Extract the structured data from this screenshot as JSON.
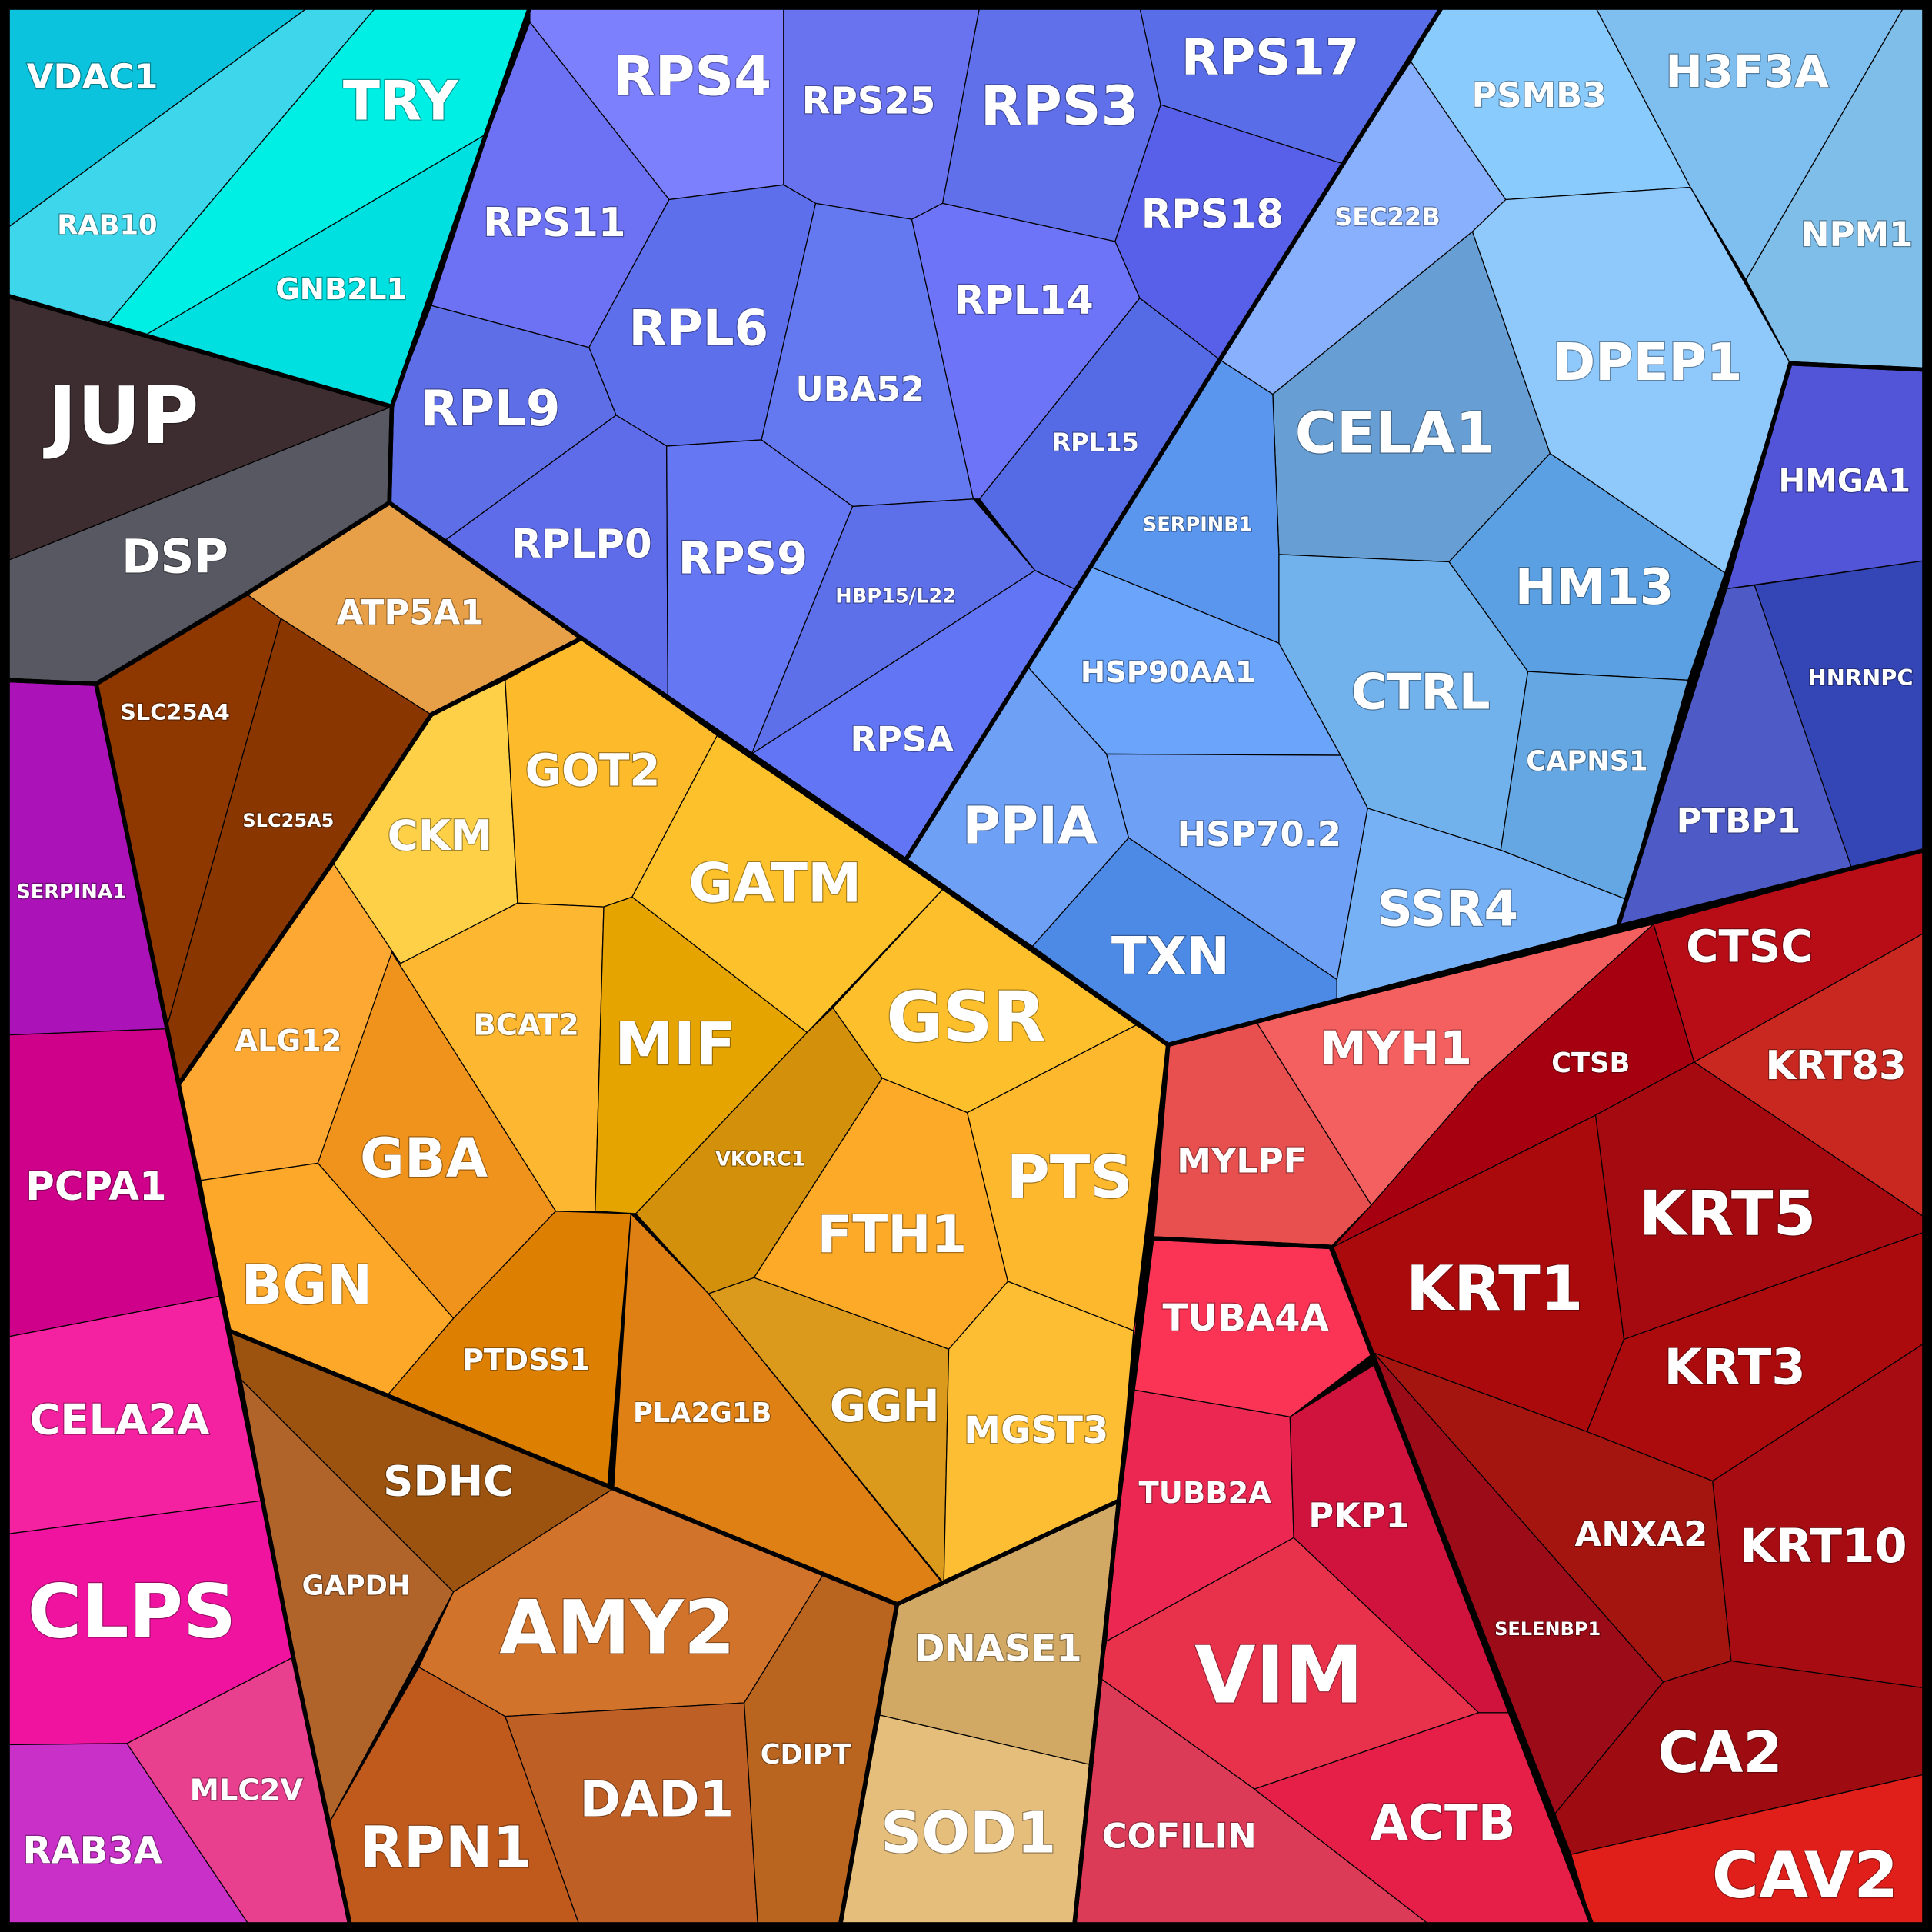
{
  "chart_data": {
    "type": "voronoi-treemap",
    "cells": [
      {
        "label": "VDAC1",
        "color": "#0bc3dc"
      },
      {
        "label": "RAB10",
        "color": "#3dd6ea"
      },
      {
        "label": "TRY",
        "color": "#00efe5"
      },
      {
        "label": "GNB2L1",
        "color": "#00e0e0"
      },
      {
        "label": "JUP",
        "color": "#3d2d31"
      },
      {
        "label": "DSP",
        "color": "#585862"
      },
      {
        "label": "SERPINA1",
        "color": "#ab12b8"
      },
      {
        "label": "PCPA1",
        "color": "#cf0089"
      },
      {
        "label": "CELA2A",
        "color": "#f421a1"
      },
      {
        "label": "CLPS",
        "color": "#f0139f"
      },
      {
        "label": "RAB3A",
        "color": "#c830c8"
      },
      {
        "label": "MLC2V",
        "color": "#e8408f"
      },
      {
        "label": "SLC25A4",
        "color": "#8e3800"
      },
      {
        "label": "SLC25A5",
        "color": "#8a3600"
      },
      {
        "label": "ATP5A1",
        "color": "#e8a048"
      },
      {
        "label": "CKM",
        "color": "#fdd048"
      },
      {
        "label": "GOT2",
        "color": "#fdba2b"
      },
      {
        "label": "GATM",
        "color": "#fdc12c"
      },
      {
        "label": "ALG12",
        "color": "#fca832"
      },
      {
        "label": "BCAT2",
        "color": "#fdb731"
      },
      {
        "label": "MIF",
        "color": "#e6a400"
      },
      {
        "label": "GBA",
        "color": "#ef931c"
      },
      {
        "label": "BGN",
        "color": "#fda829"
      },
      {
        "label": "VKORC1",
        "color": "#d3900a"
      },
      {
        "label": "GSR",
        "color": "#fdc02c"
      },
      {
        "label": "FTH1",
        "color": "#fcaa28"
      },
      {
        "label": "PTS",
        "color": "#fdb82e"
      },
      {
        "label": "PTDSS1",
        "color": "#dd7f00"
      },
      {
        "label": "PLA2G1B",
        "color": "#de8014"
      },
      {
        "label": "GGH",
        "color": "#dc9a1c"
      },
      {
        "label": "MGST3",
        "color": "#fdbe33"
      },
      {
        "label": "SDHC",
        "color": "#9b530f"
      },
      {
        "label": "GAPDH",
        "color": "#b1642a"
      },
      {
        "label": "AMY2",
        "color": "#d2732b"
      },
      {
        "label": "RPN1",
        "color": "#bf5a1c"
      },
      {
        "label": "DAD1",
        "color": "#be5f26"
      },
      {
        "label": "CDIPT",
        "color": "#b9641f"
      },
      {
        "label": "DNASE1",
        "color": "#d1a965"
      },
      {
        "label": "SOD1",
        "color": "#e6be7b"
      },
      {
        "label": "RPS4",
        "color": "#7d80fd"
      },
      {
        "label": "RPS11",
        "color": "#6c72f3"
      },
      {
        "label": "RPS25",
        "color": "#6a73ef"
      },
      {
        "label": "RPS3",
        "color": "#5f70ea"
      },
      {
        "label": "RPS17",
        "color": "#5a6de8"
      },
      {
        "label": "RPS18",
        "color": "#5860ea"
      },
      {
        "label": "RPL6",
        "color": "#5e6fec"
      },
      {
        "label": "UBA52",
        "color": "#6478f0"
      },
      {
        "label": "RPL14",
        "color": "#6d74f7"
      },
      {
        "label": "RPL9",
        "color": "#5e6ee6"
      },
      {
        "label": "RPL15",
        "color": "#556ae5"
      },
      {
        "label": "RPLP0",
        "color": "#5e6cea"
      },
      {
        "label": "RPS9",
        "color": "#6677f3"
      },
      {
        "label": "HBP15/L22",
        "color": "#5d70e9"
      },
      {
        "label": "RPSA",
        "color": "#6276f5"
      },
      {
        "label": "PSMB3",
        "color": "#8acbfd"
      },
      {
        "label": "SEC22B",
        "color": "#89b0fd"
      },
      {
        "label": "CELA1",
        "color": "#679fd5"
      },
      {
        "label": "DPEP1",
        "color": "#8fc8fb"
      },
      {
        "label": "SERPINB1",
        "color": "#5a96ed"
      },
      {
        "label": "HM13",
        "color": "#5aa0e2"
      },
      {
        "label": "HSP90AA1",
        "color": "#6ba4fb"
      },
      {
        "label": "CTRL",
        "color": "#71b1ec"
      },
      {
        "label": "CAPNS1",
        "color": "#65a7e2"
      },
      {
        "label": "PPIA",
        "color": "#6ea0f5"
      },
      {
        "label": "HSP70.2",
        "color": "#6ea1f6"
      },
      {
        "label": "TXN",
        "color": "#4d8ae6"
      },
      {
        "label": "SSR4",
        "color": "#77b1f5"
      },
      {
        "label": "H3F3A",
        "color": "#7fbff0"
      },
      {
        "label": "NPM1",
        "color": "#7ebee9"
      },
      {
        "label": "HMGA1",
        "color": "#5255d8"
      },
      {
        "label": "PTBP1",
        "color": "#4e5bc6"
      },
      {
        "label": "HNRNPC",
        "color": "#3446b6"
      },
      {
        "label": "MYLPF",
        "color": "#e85050"
      },
      {
        "label": "MYH1",
        "color": "#f45f5f"
      },
      {
        "label": "CTSB",
        "color": "#a60010"
      },
      {
        "label": "CTSC",
        "color": "#b80d17"
      },
      {
        "label": "KRT83",
        "color": "#c82820"
      },
      {
        "label": "KRT1",
        "color": "#aa0a0c"
      },
      {
        "label": "KRT5",
        "color": "#a50a10"
      },
      {
        "label": "KRT3",
        "color": "#ac0b0d"
      },
      {
        "label": "SELENBP1",
        "color": "#9c0c18"
      },
      {
        "label": "ANXA2",
        "color": "#a41510"
      },
      {
        "label": "KRT10",
        "color": "#a60c12"
      },
      {
        "label": "CA2",
        "color": "#9e0b10"
      },
      {
        "label": "CAV2",
        "color": "#e01e1a"
      },
      {
        "label": "TUBA4A",
        "color": "#fb3455"
      },
      {
        "label": "TUBB2A",
        "color": "#ec2752"
      },
      {
        "label": "PKP1",
        "color": "#d0133d"
      },
      {
        "label": "VIM",
        "color": "#e8324b"
      },
      {
        "label": "COFILIN",
        "color": "#dc3b58"
      },
      {
        "label": "ACTB",
        "color": "#e51f47"
      }
    ]
  }
}
